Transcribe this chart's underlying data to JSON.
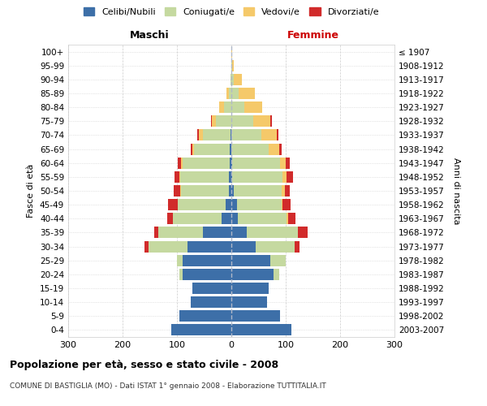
{
  "age_groups": [
    "0-4",
    "5-9",
    "10-14",
    "15-19",
    "20-24",
    "25-29",
    "30-34",
    "35-39",
    "40-44",
    "45-49",
    "50-54",
    "55-59",
    "60-64",
    "65-69",
    "70-74",
    "75-79",
    "80-84",
    "85-89",
    "90-94",
    "95-99",
    "100+"
  ],
  "birth_years": [
    "2003-2007",
    "1998-2002",
    "1993-1997",
    "1988-1992",
    "1983-1987",
    "1978-1982",
    "1973-1977",
    "1968-1972",
    "1963-1967",
    "1958-1962",
    "1953-1957",
    "1948-1952",
    "1943-1947",
    "1938-1942",
    "1933-1937",
    "1928-1932",
    "1923-1927",
    "1918-1922",
    "1913-1917",
    "1908-1912",
    "≤ 1907"
  ],
  "colors": {
    "celibe": "#3d6fa8",
    "coniugato": "#c5d9a0",
    "vedovo": "#f5c96a",
    "divorziato": "#d12b2b"
  },
  "male": {
    "celibe": [
      110,
      95,
      75,
      72,
      90,
      90,
      80,
      52,
      18,
      10,
      5,
      4,
      3,
      3,
      2,
      0,
      0,
      0,
      0,
      0,
      0
    ],
    "coniugato": [
      0,
      0,
      0,
      0,
      5,
      10,
      72,
      82,
      90,
      88,
      88,
      90,
      87,
      65,
      50,
      28,
      14,
      4,
      2,
      0,
      0
    ],
    "vedovo": [
      0,
      0,
      0,
      0,
      0,
      0,
      0,
      0,
      0,
      1,
      1,
      2,
      3,
      4,
      7,
      8,
      8,
      5,
      0,
      0,
      0
    ],
    "divorziato": [
      0,
      0,
      0,
      0,
      0,
      0,
      8,
      8,
      10,
      18,
      12,
      8,
      5,
      3,
      3,
      2,
      0,
      0,
      0,
      0,
      0
    ]
  },
  "female": {
    "nubile": [
      110,
      90,
      65,
      68,
      78,
      72,
      45,
      28,
      12,
      10,
      5,
      2,
      2,
      0,
      0,
      0,
      0,
      0,
      0,
      0,
      0
    ],
    "coniugata": [
      0,
      0,
      0,
      0,
      10,
      28,
      72,
      95,
      90,
      82,
      88,
      92,
      88,
      68,
      55,
      40,
      24,
      14,
      5,
      2,
      0
    ],
    "vedova": [
      0,
      0,
      0,
      0,
      0,
      0,
      0,
      0,
      2,
      2,
      5,
      8,
      10,
      20,
      28,
      32,
      32,
      30,
      15,
      3,
      1
    ],
    "divorziata": [
      0,
      0,
      0,
      0,
      0,
      0,
      8,
      18,
      14,
      15,
      10,
      12,
      8,
      5,
      3,
      2,
      0,
      0,
      0,
      0,
      0
    ]
  },
  "title": "Popolazione per età, sesso e stato civile - 2008",
  "subtitle": "COMUNE DI BASTIGLIA (MO) - Dati ISTAT 1° gennaio 2008 - Elaborazione TUTTITALIA.IT",
  "label_maschi": "Maschi",
  "label_femmine": "Femmine",
  "ylabel_left": "Fasce di età",
  "ylabel_right": "Anni di nascita",
  "xlim": 300,
  "legend_labels": [
    "Celibi/Nubili",
    "Coniugati/e",
    "Vedovi/e",
    "Divorziati/e"
  ],
  "background_color": "#ffffff",
  "grid_color": "#cccccc"
}
